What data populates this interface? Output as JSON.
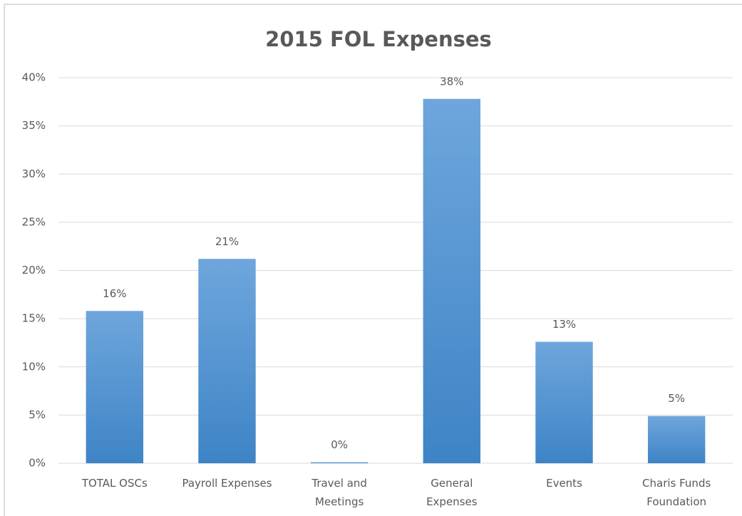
{
  "chart_data": {
    "type": "bar",
    "title": "2015 FOL Expenses",
    "categories": [
      "TOTAL OSCs",
      "Payroll Expenses",
      "Travel and\nMeetings",
      "General\nExpenses",
      "Events",
      "Charis Funds\nFoundation"
    ],
    "values": [
      15.8,
      21.2,
      0.1,
      37.8,
      12.6,
      4.9
    ],
    "value_labels": [
      "16%",
      "21%",
      "0%",
      "38%",
      "13%",
      "5%"
    ],
    "color": "#5b9bd5",
    "ylim": [
      0,
      40
    ],
    "yticks": [
      {
        "value": 0,
        "label": "0%"
      },
      {
        "value": 5,
        "label": "5%"
      },
      {
        "value": 10,
        "label": "10%"
      },
      {
        "value": 15,
        "label": "15%"
      },
      {
        "value": 20,
        "label": "20%"
      },
      {
        "value": 25,
        "label": "25%"
      },
      {
        "value": 30,
        "label": "30%"
      },
      {
        "value": 35,
        "label": "35%"
      },
      {
        "value": 40,
        "label": "40%"
      }
    ],
    "grid": true
  }
}
